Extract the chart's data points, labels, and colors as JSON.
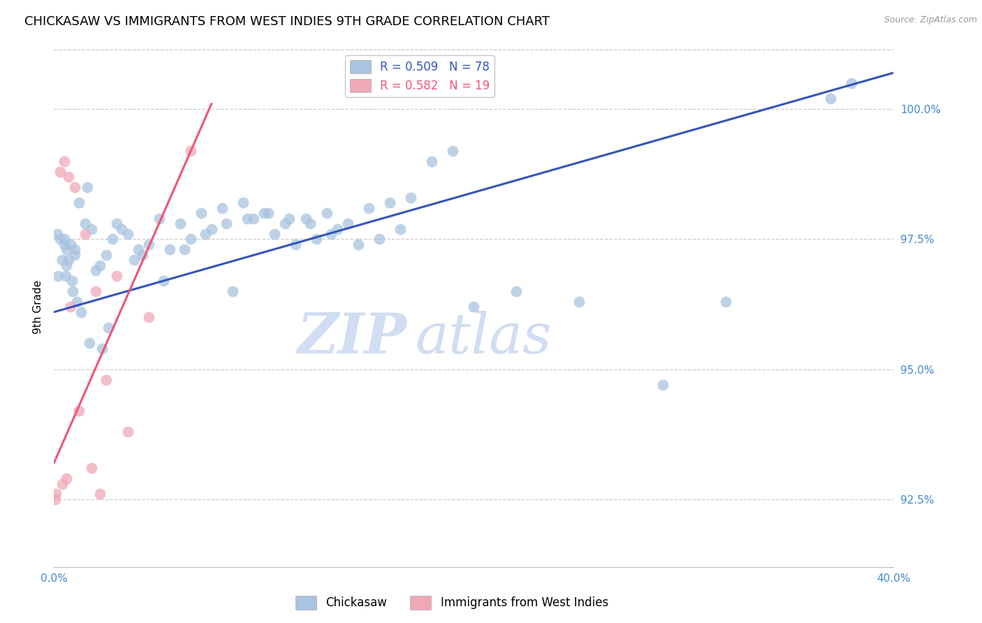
{
  "title": "CHICKASAW VS IMMIGRANTS FROM WEST INDIES 9TH GRADE CORRELATION CHART",
  "source": "Source: ZipAtlas.com",
  "ylabel": "9th Grade",
  "y_tick_labels": [
    "92.5%",
    "95.0%",
    "97.5%",
    "100.0%"
  ],
  "y_tick_values": [
    92.5,
    95.0,
    97.5,
    100.0
  ],
  "x_min": 0.0,
  "x_max": 40.0,
  "y_min": 91.2,
  "y_max": 101.2,
  "blue_color": "#A8C4E0",
  "pink_color": "#F0A8B8",
  "blue_line_color": "#3355BB",
  "pink_line_color": "#EE5577",
  "axis_color": "#4488CC",
  "legend_R_blue": "R = 0.509",
  "legend_N_blue": "N = 78",
  "legend_R_pink": "R = 0.582",
  "legend_N_pink": "N = 19",
  "legend_label_blue": "Chickasaw",
  "legend_label_pink": "Immigrants from West Indies",
  "watermark_zip": "ZIP",
  "watermark_atlas": "atlas",
  "blue_scatter_x": [
    0.15,
    0.2,
    0.3,
    0.4,
    0.5,
    0.5,
    0.55,
    0.6,
    0.6,
    0.7,
    0.8,
    0.85,
    0.9,
    1.0,
    1.0,
    1.1,
    1.2,
    1.3,
    1.5,
    1.6,
    1.7,
    1.8,
    2.0,
    2.2,
    2.3,
    2.5,
    2.6,
    2.8,
    3.0,
    3.2,
    3.5,
    3.8,
    4.0,
    4.2,
    4.5,
    5.0,
    5.2,
    5.5,
    6.0,
    6.2,
    6.5,
    7.0,
    7.2,
    7.5,
    8.0,
    8.2,
    8.5,
    9.0,
    9.2,
    9.5,
    10.0,
    10.2,
    10.5,
    11.0,
    11.2,
    11.5,
    12.0,
    12.2,
    12.5,
    13.0,
    13.2,
    13.5,
    14.0,
    14.5,
    15.0,
    15.5,
    16.0,
    16.5,
    17.0,
    18.0,
    19.0,
    20.0,
    22.0,
    25.0,
    29.0,
    32.0,
    37.0,
    38.0
  ],
  "blue_scatter_y": [
    97.6,
    96.8,
    97.5,
    97.1,
    97.4,
    97.5,
    96.8,
    97.0,
    97.3,
    97.1,
    97.4,
    96.7,
    96.5,
    97.3,
    97.2,
    96.3,
    98.2,
    96.1,
    97.8,
    98.5,
    95.5,
    97.7,
    96.9,
    97.0,
    95.4,
    97.2,
    95.8,
    97.5,
    97.8,
    97.7,
    97.6,
    97.1,
    97.3,
    97.2,
    97.4,
    97.9,
    96.7,
    97.3,
    97.8,
    97.3,
    97.5,
    98.0,
    97.6,
    97.7,
    98.1,
    97.8,
    96.5,
    98.2,
    97.9,
    97.9,
    98.0,
    98.0,
    97.6,
    97.8,
    97.9,
    97.4,
    97.9,
    97.8,
    97.5,
    98.0,
    97.6,
    97.7,
    97.8,
    97.4,
    98.1,
    97.5,
    98.2,
    97.7,
    98.3,
    99.0,
    99.2,
    96.2,
    96.5,
    96.3,
    94.7,
    96.3,
    100.2,
    100.5
  ],
  "pink_scatter_x": [
    0.05,
    0.1,
    0.3,
    0.4,
    0.5,
    0.6,
    0.7,
    0.8,
    1.0,
    1.2,
    1.5,
    1.8,
    2.0,
    2.2,
    2.5,
    3.0,
    3.5,
    4.5,
    6.5
  ],
  "pink_scatter_y": [
    92.5,
    92.6,
    98.8,
    92.8,
    99.0,
    92.9,
    98.7,
    96.2,
    98.5,
    94.2,
    97.6,
    93.1,
    96.5,
    92.6,
    94.8,
    96.8,
    93.8,
    96.0,
    99.2
  ],
  "blue_line_x": [
    0.0,
    40.0
  ],
  "blue_line_y": [
    96.1,
    100.7
  ],
  "pink_line_x": [
    0.0,
    7.5
  ],
  "pink_line_y": [
    93.2,
    100.1
  ],
  "background_color": "#ffffff",
  "grid_color": "#cccccc",
  "title_fontsize": 13,
  "axis_label_fontsize": 11,
  "tick_fontsize": 11
}
